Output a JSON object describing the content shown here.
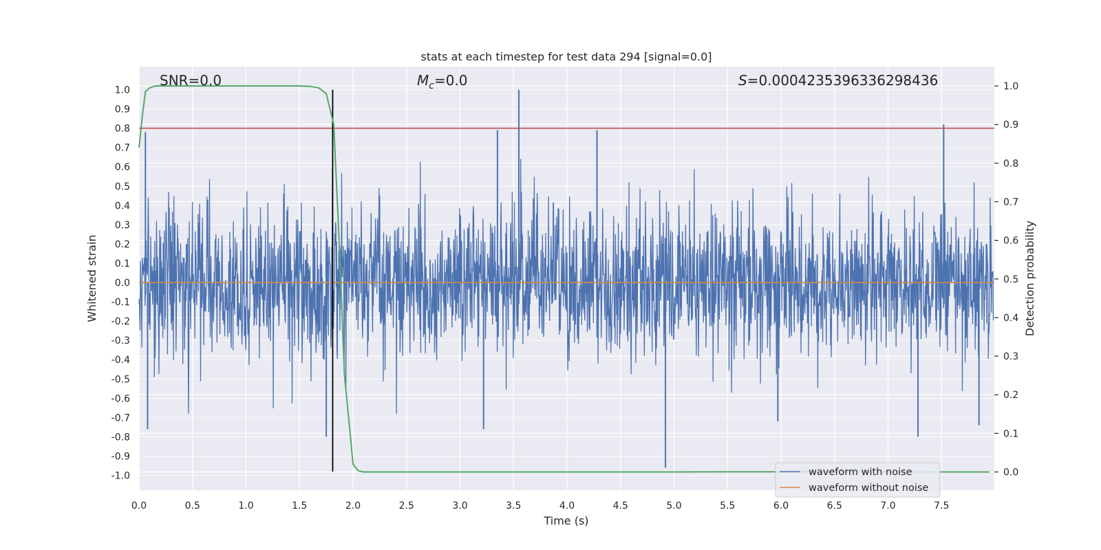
{
  "chart_data": {
    "type": "line",
    "title": "stats at each timestep for test data 294 [signal=0.0]",
    "xlabel": "Time (s)",
    "ylabel": "Whitened strain",
    "ylabel_right": "Detection probability",
    "xlim": [
      0.0,
      8.0
    ],
    "ylim": [
      -1.08,
      1.09
    ],
    "ylim_right": [
      -0.05,
      1.04
    ],
    "xticks": [
      "0.0",
      "0.5",
      "1.0",
      "1.5",
      "2.0",
      "2.5",
      "3.0",
      "3.5",
      "4.0",
      "4.5",
      "5.0",
      "5.5",
      "6.0",
      "6.5",
      "7.0",
      "7.5"
    ],
    "yticks": [
      "1.0",
      "0.9",
      "0.8",
      "0.7",
      "0.6",
      "0.5",
      "0.4",
      "0.3",
      "0.2",
      "0.1",
      "0.0",
      "-0.1",
      "-0.2",
      "-0.3",
      "-0.4",
      "-0.5",
      "-0.6",
      "-0.7",
      "-0.8",
      "-0.9",
      "-1.0"
    ],
    "yticks_right": [
      "1.0",
      "0.9",
      "0.8",
      "0.7",
      "0.6",
      "0.5",
      "0.4",
      "0.3",
      "0.2",
      "0.1",
      "0.0"
    ],
    "annotations": {
      "snr": "SNR=0.0",
      "mc_symbol": "M",
      "mc_sub": "c",
      "mc_value": "=0.0",
      "s_symbol": "S",
      "s_value": "=0.0004235396336298436"
    },
    "series": [
      {
        "name": "waveform with noise",
        "color": "#4c72b0",
        "axis": "left",
        "duration_s": 8.0,
        "typical_amplitude": 0.45,
        "peaks": [
          {
            "x": 3.55,
            "y": 1.0
          },
          {
            "x": 7.52,
            "y": 0.82
          },
          {
            "x": 0.06,
            "y": 0.78
          },
          {
            "x": 3.35,
            "y": 0.79
          },
          {
            "x": 4.28,
            "y": 0.79
          },
          {
            "x": 4.92,
            "y": -0.96
          },
          {
            "x": 3.22,
            "y": -0.76
          },
          {
            "x": 0.08,
            "y": -0.76
          },
          {
            "x": 7.28,
            "y": -0.8
          },
          {
            "x": 1.75,
            "y": -0.8
          },
          {
            "x": 7.85,
            "y": -0.74
          },
          {
            "x": 5.97,
            "y": -0.72
          }
        ]
      },
      {
        "name": "waveform without noise",
        "color": "#dd8452",
        "axis": "left",
        "x": [
          0.0,
          8.0
        ],
        "y": [
          0.0,
          0.0
        ]
      },
      {
        "name": "detection probability",
        "color": "#55a868",
        "axis": "right",
        "x": [
          0.0,
          0.03,
          0.06,
          0.1,
          0.15,
          0.3,
          1.0,
          1.5,
          1.6,
          1.68,
          1.75,
          1.82,
          1.87,
          1.92,
          1.97,
          2.0,
          2.05,
          2.1,
          2.5,
          5.0,
          5.5,
          7.95
        ],
        "y": [
          0.84,
          0.92,
          0.985,
          0.995,
          1.0,
          1.0,
          1.0,
          1.0,
          0.999,
          0.995,
          0.98,
          0.9,
          0.6,
          0.25,
          0.11,
          0.02,
          0.003,
          0.0,
          0.0,
          0.0,
          0.0005,
          0.0
        ]
      }
    ],
    "hlines": [
      {
        "y": 0.8,
        "color": "#c44e52",
        "axis": "left"
      },
      {
        "y": 0.0,
        "color": "#55a868",
        "axis": "left"
      }
    ],
    "vlines": [
      {
        "x": 1.81,
        "color": "#000000",
        "y_from": -0.98,
        "y_to": 1.0
      }
    ],
    "legend": {
      "placement": "bottom-right",
      "entries": [
        {
          "label": "waveform with noise",
          "color": "#4c72b0"
        },
        {
          "label": "waveform without noise",
          "color": "#dd8452"
        }
      ]
    }
  }
}
